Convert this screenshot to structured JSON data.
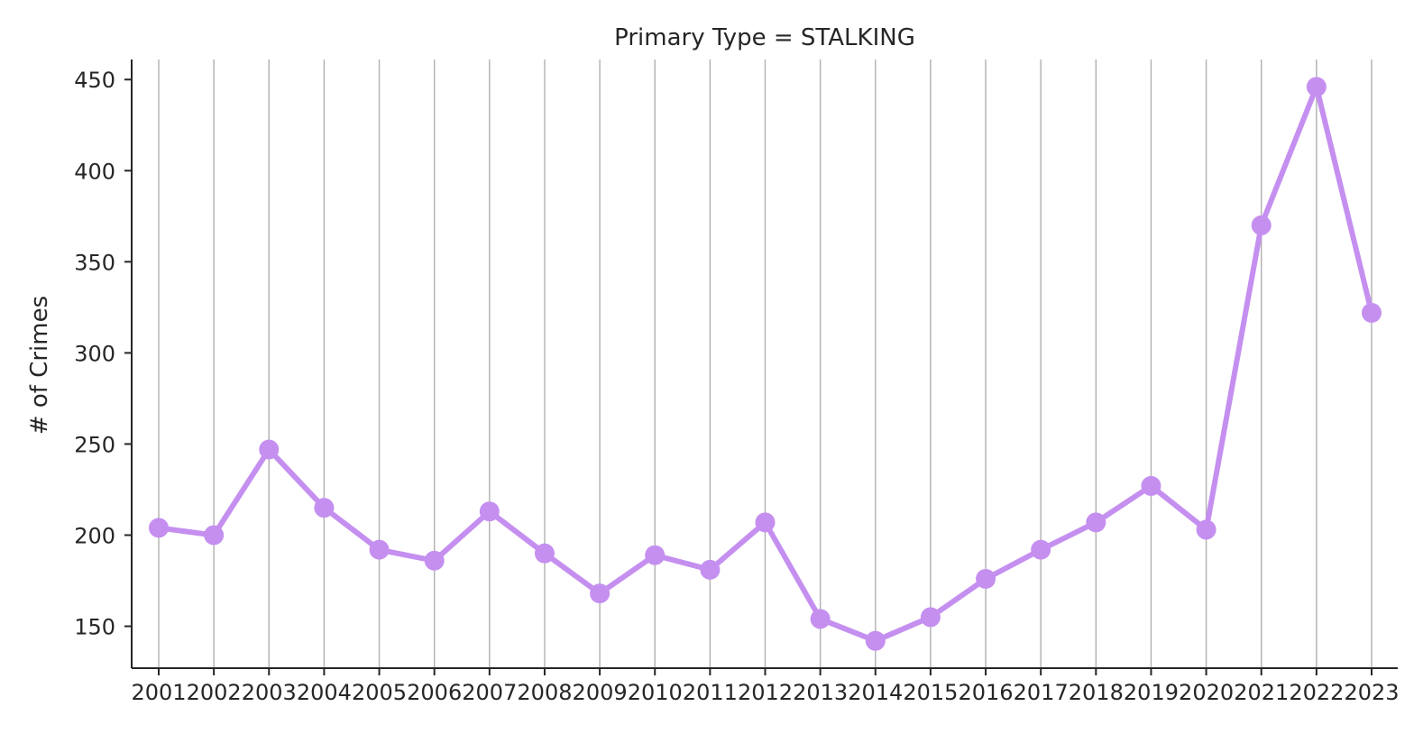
{
  "chart_data": {
    "type": "line",
    "title": "Primary Type = STALKING",
    "xlabel": "",
    "ylabel": "# of Crimes",
    "categories": [
      "2001",
      "2002",
      "2003",
      "2004",
      "2005",
      "2006",
      "2007",
      "2008",
      "2009",
      "2010",
      "2011",
      "2012",
      "2013",
      "2014",
      "2015",
      "2016",
      "2017",
      "2018",
      "2019",
      "2020",
      "2021",
      "2022",
      "2023"
    ],
    "series": [
      {
        "color": "#c58ff0",
        "values": [
          204,
          200,
          247,
          215,
          192,
          186,
          213,
          190,
          168,
          189,
          181,
          207,
          154,
          142,
          155,
          176,
          192,
          207,
          227,
          203,
          370,
          446,
          322
        ]
      }
    ],
    "yticks": [
      150,
      200,
      250,
      300,
      350,
      400,
      450
    ],
    "ylim": [
      127,
      461
    ],
    "grid": "vertical",
    "legend": "none"
  }
}
